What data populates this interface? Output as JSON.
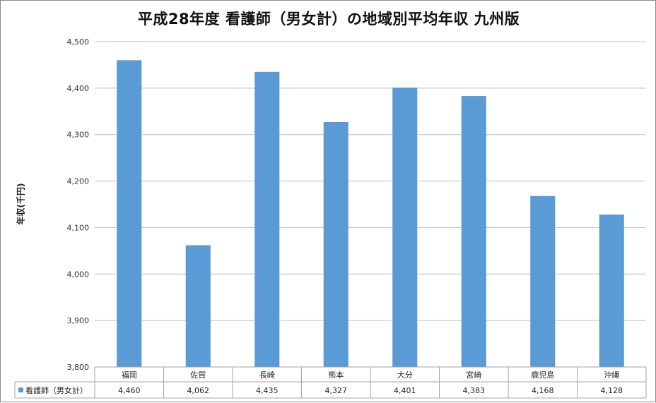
{
  "chart_data": {
    "type": "bar",
    "title": "平成28年度 看護師（男女計）の地域別平均年収 九州版",
    "ylabel": "年収(千円)",
    "xlabel": "",
    "categories": [
      "福岡",
      "佐賀",
      "長崎",
      "熊本",
      "大分",
      "宮崎",
      "鹿児島",
      "沖縄"
    ],
    "series": [
      {
        "name": "看護師（男女計）",
        "values": [
          4460,
          4062,
          4435,
          4327,
          4401,
          4383,
          4168,
          4128
        ],
        "value_labels": [
          "4,460",
          "4,062",
          "4,435",
          "4,327",
          "4,401",
          "4,383",
          "4,168",
          "4,128"
        ],
        "color": "#5b9bd5"
      }
    ],
    "ylim": [
      3800,
      4500
    ],
    "yticks": [
      3800,
      3900,
      4000,
      4100,
      4200,
      4300,
      4400,
      4500
    ],
    "ytick_labels": [
      "3,800",
      "3,900",
      "4,000",
      "4,100",
      "4,200",
      "4,300",
      "4,400",
      "4,500"
    ],
    "grid": true,
    "legend": "data-table",
    "gridline_color": "#bfbfbf"
  }
}
